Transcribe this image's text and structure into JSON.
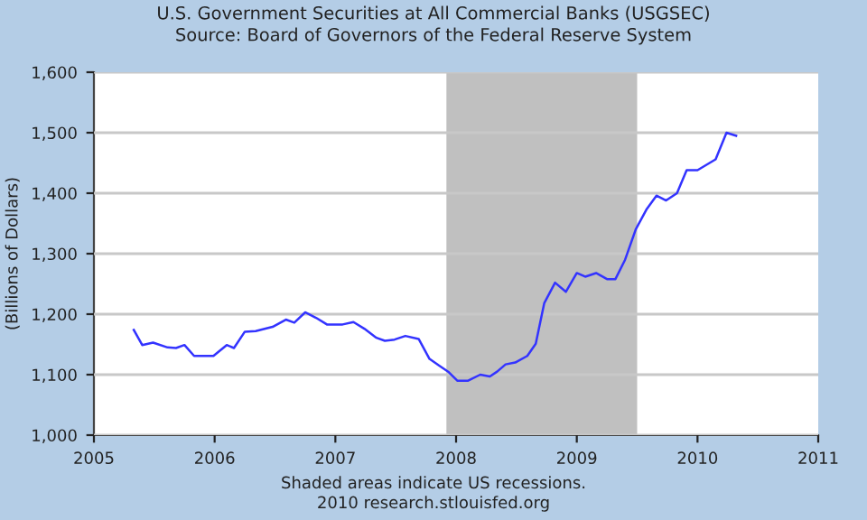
{
  "chart_data": {
    "type": "line",
    "title": "U.S. Government Securities at All Commercial Banks (USGSEC)",
    "subtitle": "Source: Board of Governors of the Federal Reserve System",
    "ylabel": "(Billions of Dollars)",
    "annotations": [
      "Shaded areas indicate US recessions.",
      "2010 research.stlouisfed.org"
    ],
    "series": [
      {
        "color": "#3333ff",
        "x": [
          2005.33,
          2005.4,
          2005.49,
          2005.61,
          2005.68,
          2005.75,
          2005.83,
          2005.99,
          2006.1,
          2006.16,
          2006.25,
          2006.34,
          2006.48,
          2006.59,
          2006.66,
          2006.75,
          2006.84,
          2006.93,
          2007.06,
          2007.15,
          2007.24,
          2007.34,
          2007.41,
          2007.49,
          2007.58,
          2007.69,
          2007.78,
          2007.86,
          2007.94,
          2008.01,
          2008.1,
          2008.2,
          2008.28,
          2008.34,
          2008.41,
          2008.49,
          2008.59,
          2008.66,
          2008.73,
          2008.82,
          2008.91,
          2009.0,
          2009.07,
          2009.16,
          2009.25,
          2009.32,
          2009.4,
          2009.49,
          2009.58,
          2009.66,
          2009.74,
          2009.83,
          2009.91,
          2010.0,
          2010.15,
          2010.24,
          2010.32
        ],
        "values": [
          1174,
          1149,
          1153,
          1145,
          1144,
          1149,
          1131,
          1131,
          1149,
          1144,
          1171,
          1172,
          1179,
          1191,
          1186,
          1203,
          1194,
          1183,
          1183,
          1187,
          1176,
          1161,
          1156,
          1158,
          1164,
          1159,
          1126,
          1115,
          1104,
          1090,
          1090,
          1100,
          1097,
          1105,
          1117,
          1120,
          1131,
          1151,
          1218,
          1252,
          1237,
          1268,
          1262,
          1268,
          1258,
          1258,
          1290,
          1341,
          1374,
          1396,
          1388,
          1400,
          1438,
          1438,
          1456,
          1500,
          1495
        ]
      }
    ],
    "xlim": [
      2005,
      2011
    ],
    "xticks": [
      2005,
      2006,
      2007,
      2008,
      2009,
      2010,
      2011
    ],
    "ylim": [
      1000,
      1600
    ],
    "yticks": [
      {
        "value": 1000,
        "label": "1,000"
      },
      {
        "value": 1100,
        "label": "1,100"
      },
      {
        "value": 1200,
        "label": "1,200"
      },
      {
        "value": 1300,
        "label": "1,300"
      },
      {
        "value": 1400,
        "label": "1,400"
      },
      {
        "value": 1500,
        "label": "1,500"
      },
      {
        "value": 1600,
        "label": "1,600"
      }
    ],
    "grid": "y",
    "bands": [
      {
        "axis": "x",
        "from": 2007.92,
        "to": 2009.5,
        "color": "#c0c0c0"
      }
    ]
  }
}
